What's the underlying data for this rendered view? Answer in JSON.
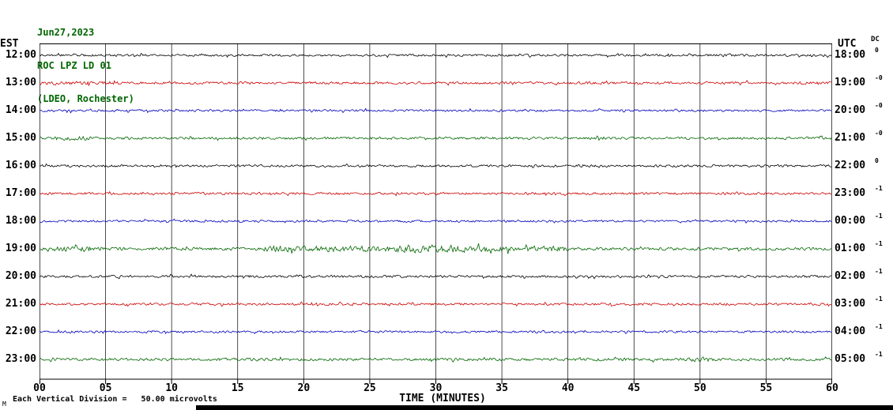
{
  "header": {
    "date": "Jun27,2023",
    "station": "ROC LPZ LD 01",
    "location": "(LDEO, Rochester)"
  },
  "labels": {
    "left_axis": "EST",
    "right_axis": "UTC",
    "dc": "DC",
    "xlabel": "TIME (MINUTES)",
    "footer_note": "Each Vertical Division =   50.00 microvolts",
    "corner_mark": "M"
  },
  "colors": {
    "title_green": "#006600",
    "trace_black": "#000000",
    "trace_red": "#cc0000",
    "trace_blue": "#0000bb",
    "trace_green": "#006600",
    "grid": "#000000"
  },
  "chart_data": {
    "type": "line",
    "title": "ROC LPZ LD 01 (LDEO, Rochester) helicorder Jun27,2023",
    "xlabel": "TIME (MINUTES)",
    "x_range": [
      0,
      60
    ],
    "x_ticks": [
      "00",
      "05",
      "10",
      "15",
      "20",
      "25",
      "30",
      "35",
      "40",
      "45",
      "50",
      "55",
      "60"
    ],
    "minutes_per_line": 60,
    "vertical_division_microvolts": 50.0,
    "rows": [
      {
        "est": "12:00",
        "utc": "18:00",
        "color": "black",
        "dc": "0",
        "base_amp": 1.2,
        "events": []
      },
      {
        "est": "13:00",
        "utc": "19:00",
        "color": "red",
        "dc": "-0",
        "base_amp": 1.4,
        "events": [
          {
            "start": 0,
            "end": 6,
            "amp": 1.9
          }
        ]
      },
      {
        "est": "14:00",
        "utc": "20:00",
        "color": "blue",
        "dc": "-0",
        "base_amp": 1.2,
        "events": []
      },
      {
        "est": "15:00",
        "utc": "21:00",
        "color": "green",
        "dc": "-0",
        "base_amp": 1.4,
        "events": [
          {
            "start": 1,
            "end": 4,
            "amp": 2.4
          }
        ]
      },
      {
        "est": "16:00",
        "utc": "22:00",
        "color": "black",
        "dc": "0",
        "base_amp": 1.3,
        "events": []
      },
      {
        "est": "17:00",
        "utc": "23:00",
        "color": "red",
        "dc": "-1",
        "base_amp": 1.3,
        "events": []
      },
      {
        "est": "18:00",
        "utc": "00:00",
        "color": "blue",
        "dc": "-1",
        "base_amp": 1.2,
        "events": []
      },
      {
        "est": "19:00",
        "utc": "01:00",
        "color": "green",
        "dc": "-1",
        "base_amp": 1.7,
        "events": [
          {
            "start": 1,
            "end": 4,
            "amp": 3.0
          },
          {
            "start": 17,
            "end": 27,
            "amp": 3.2
          },
          {
            "start": 27,
            "end": 34,
            "amp": 4.2
          },
          {
            "start": 34,
            "end": 40,
            "amp": 3.0
          }
        ]
      },
      {
        "est": "20:00",
        "utc": "02:00",
        "color": "black",
        "dc": "-1",
        "base_amp": 1.3,
        "events": []
      },
      {
        "est": "21:00",
        "utc": "03:00",
        "color": "red",
        "dc": "-1",
        "base_amp": 1.3,
        "events": []
      },
      {
        "est": "22:00",
        "utc": "04:00",
        "color": "blue",
        "dc": "-1",
        "base_amp": 1.2,
        "events": []
      },
      {
        "est": "23:00",
        "utc": "05:00",
        "color": "green",
        "dc": "-1",
        "base_amp": 1.5,
        "events": [
          {
            "start": 49,
            "end": 51,
            "amp": 2.6
          }
        ]
      }
    ]
  }
}
